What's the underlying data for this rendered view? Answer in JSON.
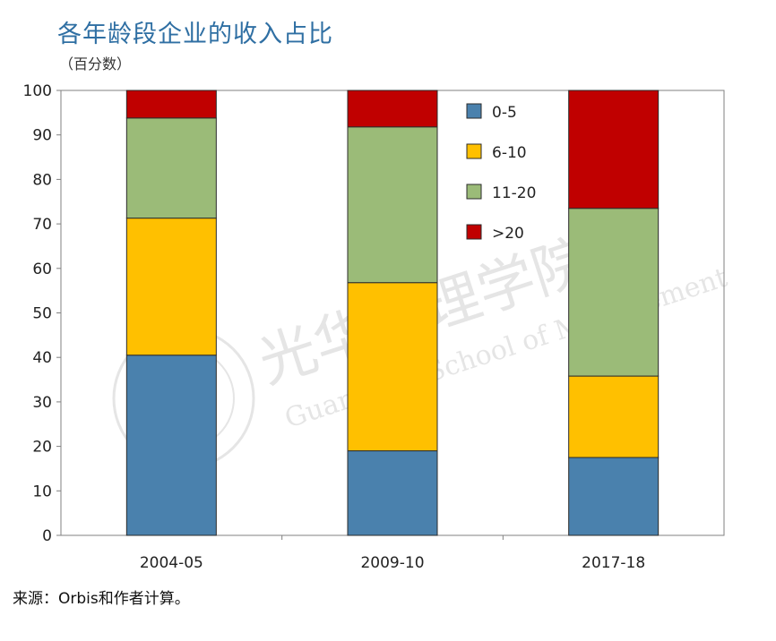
{
  "header": {
    "title": "各年龄段企业的收入占比",
    "subtitle": "（百分数）"
  },
  "footer": {
    "source": "来源：Orbis和作者计算。"
  },
  "watermark": {
    "text_cn": "光华管理学院",
    "text_en": "Guanghua School of Management",
    "seal_icon": "peking-university-seal-icon"
  },
  "chart_data": {
    "type": "bar",
    "stacked": true,
    "categories": [
      "2004-05",
      "2009-10",
      "2017-18"
    ],
    "ylim": [
      0,
      100
    ],
    "yticks": [
      0,
      10,
      20,
      30,
      40,
      50,
      60,
      70,
      80,
      90,
      100
    ],
    "grid": false,
    "legend_position": "top-center",
    "series": [
      {
        "name": "0-5",
        "color": "#4a81ad",
        "values": [
          40.5,
          19.0,
          17.5
        ]
      },
      {
        "name": "6-10",
        "color": "#ffc000",
        "values": [
          30.8,
          37.8,
          18.3
        ]
      },
      {
        "name": "11-20",
        "color": "#9bbb78",
        "values": [
          22.5,
          35.0,
          37.7
        ]
      },
      {
        "name": ">20",
        "color": "#c00000",
        "values": [
          6.2,
          8.2,
          26.5
        ]
      }
    ]
  }
}
